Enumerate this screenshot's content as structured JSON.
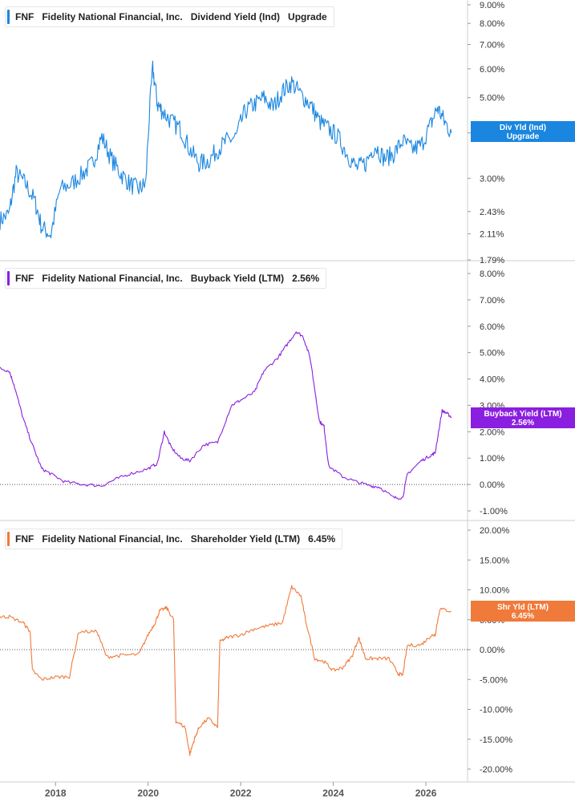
{
  "chart_data": [
    {
      "type": "line",
      "ticker": "FNF",
      "company": "Fidelity National Financial, Inc.",
      "metric": "Dividend Yield (Ind)",
      "badge": "Upgrade",
      "flag_label": "Div Yld (Ind)",
      "flag_value": "Upgrade",
      "color": "#1a86e0",
      "scale": "log",
      "ylim": [
        1.79,
        9.0
      ],
      "yticks": [
        "1.79%",
        "2.11%",
        "2.43%",
        "3.00%",
        "4.00%",
        "5.00%",
        "6.00%",
        "7.00%",
        "8.00%",
        "9.00%"
      ],
      "ytick_values": [
        1.79,
        2.11,
        2.43,
        3.0,
        4.0,
        5.0,
        6.0,
        7.0,
        8.0,
        9.0
      ],
      "series": [
        {
          "x": [
            2016.8,
            2017.0,
            2017.15,
            2017.35,
            2017.55,
            2017.7,
            2017.9,
            2018.1,
            2018.35,
            2018.6,
            2018.8,
            2019.0,
            2019.2,
            2019.4,
            2019.6,
            2019.8,
            2019.95,
            2020.1,
            2020.2,
            2020.3,
            2020.5,
            2020.7,
            2020.9,
            2021.1,
            2021.3,
            2021.5,
            2021.7,
            2021.9,
            2022.1,
            2022.3,
            2022.5,
            2022.7,
            2022.9,
            2023.1,
            2023.3,
            2023.5,
            2023.7,
            2023.9,
            2024.1,
            2024.3,
            2024.5,
            2024.7,
            2024.9,
            2025.1,
            2025.3,
            2025.5,
            2025.7,
            2025.9,
            2026.1,
            2026.25,
            2026.4,
            2026.55
          ],
          "y": [
            2.3,
            2.4,
            3.1,
            2.9,
            2.6,
            2.2,
            2.1,
            2.8,
            2.9,
            3.1,
            3.3,
            3.9,
            3.4,
            3.1,
            2.9,
            2.8,
            2.9,
            6.0,
            4.8,
            4.6,
            4.3,
            4.1,
            3.6,
            3.3,
            3.35,
            3.6,
            3.8,
            3.9,
            4.6,
            4.8,
            5.0,
            4.7,
            5.2,
            5.5,
            5.1,
            4.8,
            4.3,
            4.1,
            3.9,
            3.5,
            3.2,
            3.3,
            3.7,
            3.4,
            3.5,
            3.8,
            3.6,
            3.7,
            4.2,
            4.7,
            4.3,
            4.0
          ]
        }
      ]
    },
    {
      "type": "line",
      "ticker": "FNF",
      "company": "Fidelity National Financial, Inc.",
      "metric": "Buyback Yield (LTM)",
      "badge": "2.56%",
      "flag_label": "Buyback Yield (LTM)",
      "flag_value": "2.56%",
      "color": "#8a1fe0",
      "scale": "linear",
      "ylim": [
        -1.0,
        8.0
      ],
      "yticks": [
        "-1.00%",
        "0.00%",
        "1.00%",
        "2.00%",
        "3.00%",
        "4.00%",
        "5.00%",
        "6.00%",
        "7.00%",
        "8.00%"
      ],
      "ytick_values": [
        -1,
        0,
        1,
        2,
        3,
        4,
        5,
        6,
        7,
        8
      ],
      "series": [
        {
          "x": [
            2016.8,
            2017.0,
            2017.1,
            2017.3,
            2017.5,
            2017.7,
            2017.9,
            2018.2,
            2018.6,
            2019.0,
            2019.3,
            2019.6,
            2020.0,
            2020.2,
            2020.35,
            2020.5,
            2020.7,
            2020.9,
            2021.2,
            2021.5,
            2021.8,
            2022.0,
            2022.3,
            2022.5,
            2022.8,
            2023.0,
            2023.2,
            2023.35,
            2023.5,
            2023.7,
            2023.8,
            2023.9,
            2024.2,
            2024.5,
            2024.8,
            2025.0,
            2025.3,
            2025.5,
            2025.6,
            2025.9,
            2026.1,
            2026.2,
            2026.35,
            2026.45,
            2026.55
          ],
          "y": [
            4.4,
            4.3,
            3.8,
            2.5,
            1.5,
            0.6,
            0.4,
            0.1,
            0.0,
            -0.05,
            0.2,
            0.4,
            0.6,
            0.8,
            2.0,
            1.4,
            1.0,
            0.9,
            1.5,
            1.6,
            3.0,
            3.2,
            3.5,
            4.3,
            4.8,
            5.3,
            5.8,
            5.6,
            4.8,
            2.4,
            2.2,
            0.7,
            0.3,
            0.1,
            -0.05,
            -0.1,
            -0.5,
            -0.5,
            0.4,
            0.9,
            1.1,
            1.2,
            2.8,
            2.7,
            2.56
          ]
        }
      ]
    },
    {
      "type": "line",
      "ticker": "FNF",
      "company": "Fidelity National Financial, Inc.",
      "metric": "Shareholder Yield (LTM)",
      "badge": "6.45%",
      "flag_label": "Shr Yld (LTM)",
      "flag_value": "6.45%",
      "color": "#f07a3a",
      "scale": "linear",
      "ylim": [
        -20,
        20
      ],
      "yticks": [
        "-20.00%",
        "-15.00%",
        "-10.00%",
        "-5.00%",
        "0.00%",
        "5.00%",
        "10.00%",
        "15.00%",
        "20.00%"
      ],
      "ytick_values": [
        -20,
        -15,
        -10,
        -5,
        0,
        5,
        10,
        15,
        20
      ],
      "series": [
        {
          "x": [
            2016.8,
            2017.0,
            2017.3,
            2017.45,
            2017.5,
            2017.7,
            2018.0,
            2018.3,
            2018.5,
            2018.9,
            2019.1,
            2019.4,
            2019.8,
            2020.0,
            2020.15,
            2020.25,
            2020.4,
            2020.55,
            2020.6,
            2020.8,
            2020.9,
            2021.0,
            2021.1,
            2021.3,
            2021.5,
            2021.55,
            2021.7,
            2022.0,
            2022.3,
            2022.6,
            2022.9,
            2023.1,
            2023.3,
            2023.4,
            2023.6,
            2023.8,
            2024.0,
            2024.2,
            2024.4,
            2024.55,
            2024.7,
            2024.9,
            2025.2,
            2025.4,
            2025.5,
            2025.6,
            2025.9,
            2026.1,
            2026.2,
            2026.3,
            2026.55
          ],
          "y": [
            5.5,
            5.5,
            4.5,
            3.0,
            -3.5,
            -5.0,
            -4.6,
            -4.5,
            3.0,
            3.0,
            -1.2,
            -1.0,
            -0.8,
            2.5,
            4.5,
            6.5,
            7.0,
            5.0,
            -12.0,
            -13.0,
            -17.5,
            -15.0,
            -13.0,
            -11.5,
            -13.0,
            1.3,
            2.0,
            2.5,
            3.5,
            4.0,
            4.5,
            10.5,
            9.0,
            5.0,
            -1.5,
            -2.0,
            -3.5,
            -3.0,
            -1.2,
            2.0,
            -1.5,
            -1.5,
            -1.5,
            -4.0,
            -4.3,
            0.7,
            0.8,
            2.3,
            2.5,
            6.8,
            6.45
          ]
        }
      ]
    }
  ],
  "x_axis": {
    "ticks": [
      "2018",
      "2020",
      "2022",
      "2024",
      "2026"
    ],
    "tick_values": [
      2018,
      2020,
      2022,
      2024,
      2026
    ],
    "xlim": [
      2016.8,
      2026.9
    ]
  }
}
